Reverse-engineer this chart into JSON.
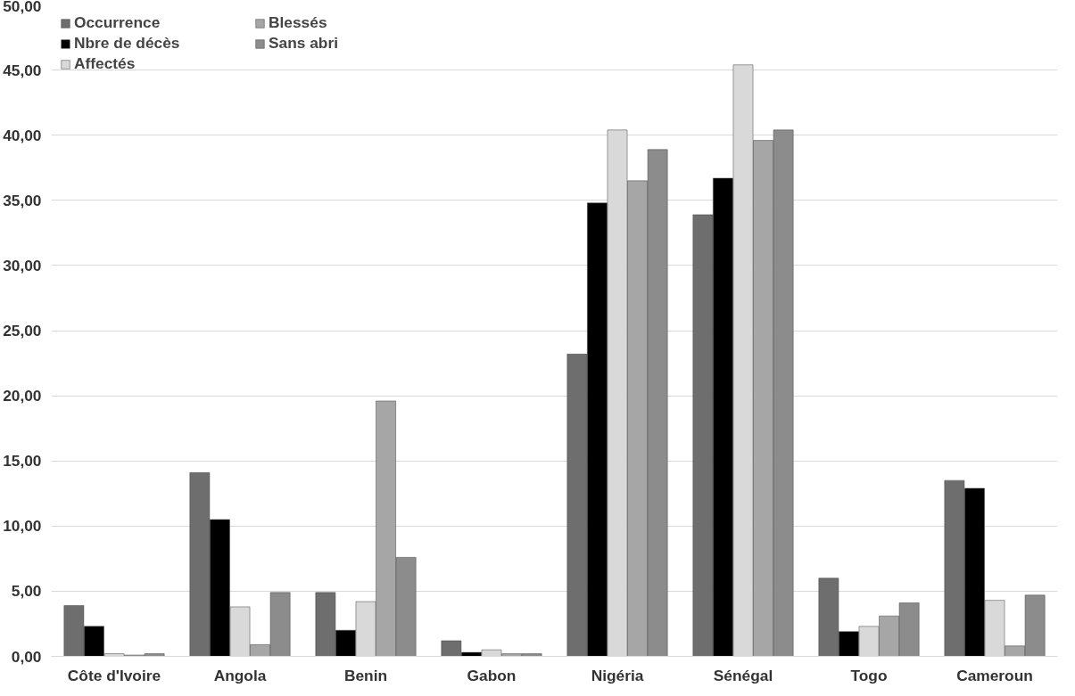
{
  "chart_data": {
    "type": "bar",
    "categories": [
      "Côte d'Ivoire",
      "Angola",
      "Benin",
      "Gabon",
      "Nigéria",
      "Sénégal",
      "Togo",
      "Cameroun"
    ],
    "series": [
      {
        "name": "Occurrence",
        "color": "#6e6e6e",
        "values": [
          3.9,
          14.1,
          4.9,
          1.2,
          23.2,
          33.9,
          6.0,
          13.5
        ]
      },
      {
        "name": "Nbre de décès",
        "color": "#000000",
        "values": [
          2.3,
          10.5,
          2.0,
          0.3,
          34.8,
          36.7,
          1.9,
          12.9
        ]
      },
      {
        "name": "Affectés",
        "color": "#d9d9d9",
        "values": [
          0.2,
          3.8,
          4.2,
          0.5,
          40.4,
          45.4,
          2.3,
          4.3
        ]
      },
      {
        "name": "Blessés",
        "color": "#a6a6a6",
        "values": [
          0.1,
          0.9,
          19.6,
          0.2,
          36.5,
          39.6,
          3.1,
          0.8
        ]
      },
      {
        "name": "Sans abri",
        "color": "#8c8c8c",
        "values": [
          0.2,
          4.9,
          7.6,
          0.2,
          38.9,
          40.4,
          4.1,
          4.7
        ]
      }
    ],
    "ylim": [
      0,
      50
    ],
    "yticks": [
      {
        "value": 0,
        "label": "0,00"
      },
      {
        "value": 5,
        "label": "5,00"
      },
      {
        "value": 10,
        "label": "10,00"
      },
      {
        "value": 15,
        "label": "15,00"
      },
      {
        "value": 20,
        "label": "20,00"
      },
      {
        "value": 25,
        "label": "25,00"
      },
      {
        "value": 30,
        "label": "30,00"
      },
      {
        "value": 35,
        "label": "35,00"
      },
      {
        "value": 40,
        "label": "40,00"
      },
      {
        "value": 45,
        "label": "45,00"
      },
      {
        "value": 50,
        "label": "50,00"
      }
    ],
    "grid": "y",
    "legend": "top left"
  }
}
